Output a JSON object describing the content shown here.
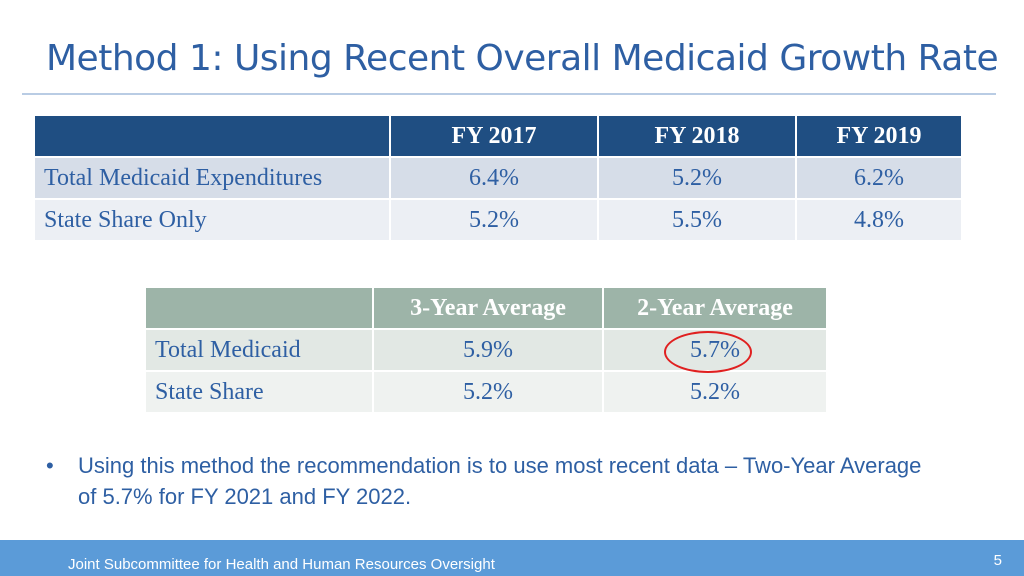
{
  "slide": {
    "title": "Method 1:  Using Recent Overall Medicaid Growth Rate",
    "table1": {
      "headers": [
        "",
        "FY 2017",
        "FY 2018",
        "FY 2019"
      ],
      "rows": [
        {
          "label": "Total Medicaid Expenditures",
          "values": [
            "6.4%",
            "5.2%",
            "6.2%"
          ]
        },
        {
          "label": "State Share Only",
          "values": [
            "5.2%",
            "5.5%",
            "4.8%"
          ]
        }
      ]
    },
    "table2": {
      "headers": [
        "",
        "3-Year Average",
        "2-Year Average"
      ],
      "rows": [
        {
          "label": "Total Medicaid",
          "values": [
            "5.9%",
            "5.7%"
          ]
        },
        {
          "label": "State Share",
          "values": [
            "5.2%",
            "5.2%"
          ]
        }
      ]
    },
    "bullet": {
      "marker": "•",
      "text": "Using this method the recommendation is to use most recent data – Two-Year Average of 5.7% for FY 2021 and FY 2022."
    },
    "footer": {
      "text": "Joint Subcommittee for Health and Human Resources Oversight",
      "page_number": "5"
    },
    "colors": {
      "title": "#2e5fa3",
      "table1_header": "#1f4e82",
      "table2_header": "#9db4a8",
      "highlight_circle": "#e02020",
      "footer_bar": "#5b9bd8"
    }
  }
}
